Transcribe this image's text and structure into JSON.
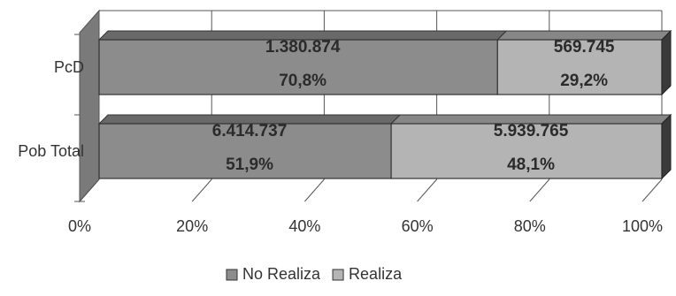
{
  "chart_data": {
    "type": "bar",
    "orientation": "horizontal",
    "stacked": "100%",
    "style": "3d",
    "categories": [
      "PcD",
      "Pob Total"
    ],
    "series": [
      {
        "name": "No Realiza",
        "color": "#8c8c8c",
        "values": [
          1380874,
          6414737
        ],
        "value_labels": [
          "1.380.874",
          "6.414.737"
        ],
        "percent_labels": [
          "70,8%",
          "51,9%"
        ],
        "percents": [
          70.8,
          51.9
        ]
      },
      {
        "name": "Realiza",
        "color": "#b4b4b4",
        "values": [
          569745,
          5939765
        ],
        "value_labels": [
          "569.745",
          "5.939.765"
        ],
        "percent_labels": [
          "29,2%",
          "48,1%"
        ],
        "percents": [
          29.2,
          48.1
        ]
      }
    ],
    "x_ticks": [
      "0%",
      "20%",
      "40%",
      "60%",
      "80%",
      "100%"
    ],
    "xlim": [
      0,
      100
    ],
    "grid": true,
    "legend": "bottom"
  }
}
